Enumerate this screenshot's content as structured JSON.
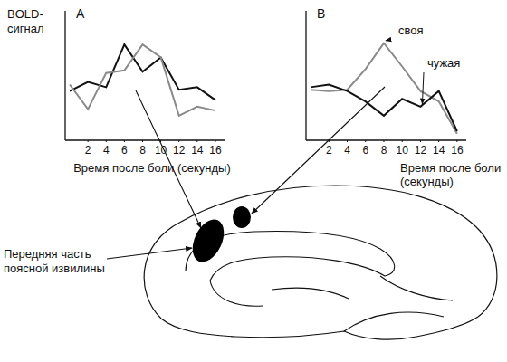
{
  "chart_data": [
    {
      "type": "line",
      "title": "A",
      "y_label": "BOLD-сигнал",
      "x_label": "Время после боли (секунды)",
      "x": [
        0,
        2,
        4,
        6,
        8,
        10,
        12,
        14,
        16
      ],
      "xlim": [
        -0.5,
        17
      ],
      "xticks": [
        2,
        4,
        6,
        8,
        10,
        12,
        14,
        16
      ],
      "ylim": [
        0,
        10
      ],
      "tick_labels": "x",
      "grid": false,
      "series": [
        {
          "color": "#111111",
          "values": [
            3.8,
            4.5,
            4.1,
            7.4,
            5.3,
            6.4,
            3.9,
            4.1,
            3.1
          ]
        },
        {
          "color": "#8a8a8a",
          "values": [
            4.3,
            2.4,
            5.2,
            5.4,
            7.4,
            6.4,
            1.9,
            2.6,
            2.3
          ]
        }
      ]
    },
    {
      "type": "line",
      "title": "B",
      "x_label": "Время после боли (секунды)",
      "x": [
        0,
        2,
        4,
        6,
        8,
        10,
        12,
        14,
        16
      ],
      "xlim": [
        -0.5,
        17
      ],
      "xticks": [
        2,
        4,
        6,
        8,
        10,
        12,
        14,
        16
      ],
      "ylim": [
        0,
        10
      ],
      "tick_labels": "x",
      "grid": false,
      "series": [
        {
          "name": "своя",
          "color": "#8a8a8a",
          "values": [
            3.9,
            3.8,
            3.9,
            5.5,
            7.5,
            5.7,
            3.8,
            3.0,
            0.5
          ]
        },
        {
          "name": "чужая",
          "color": "#111111",
          "values": [
            4.1,
            4.3,
            3.8,
            3.0,
            1.9,
            3.2,
            2.6,
            3.8,
            0.7
          ]
        }
      ]
    }
  ],
  "diagram": {
    "label": "Передняя часть поясной извилины"
  }
}
